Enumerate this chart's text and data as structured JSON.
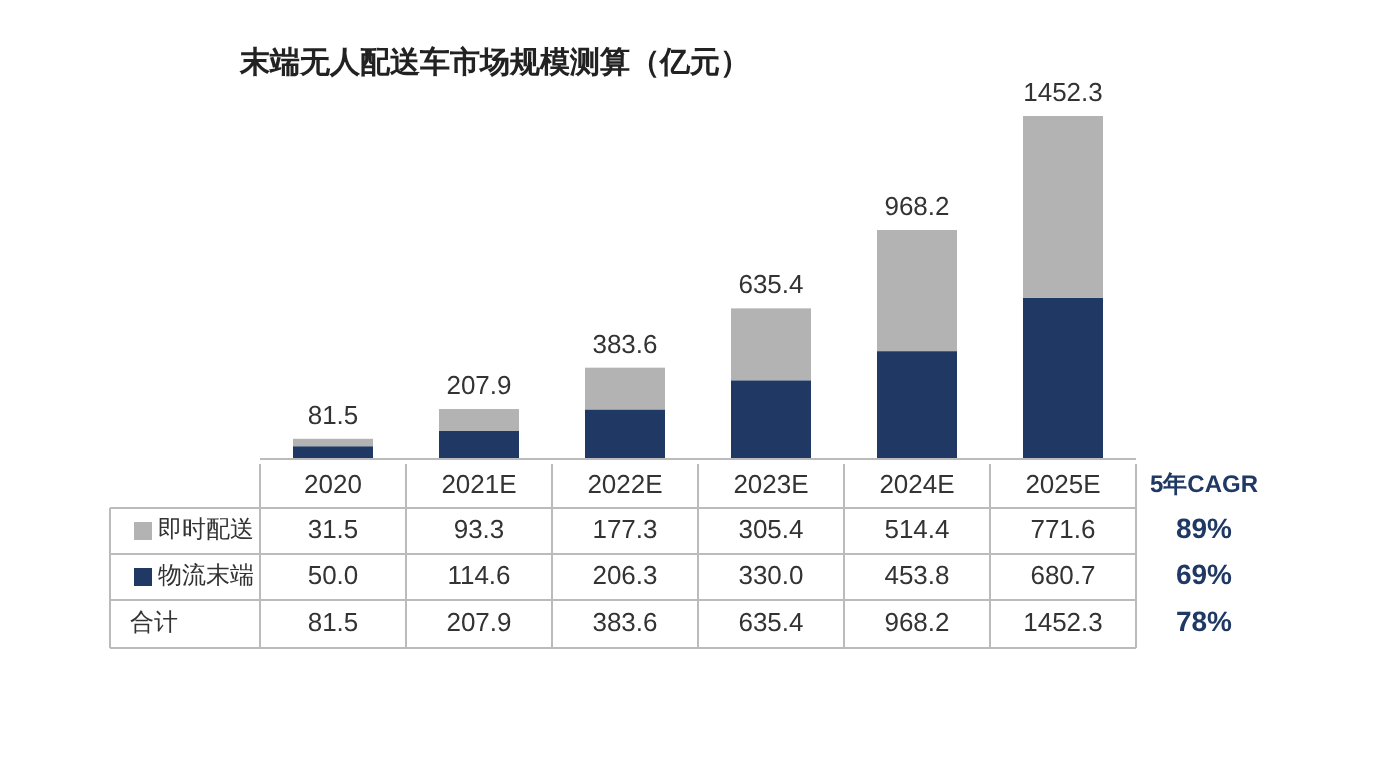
{
  "chart_data": {
    "type": "bar",
    "stacked": true,
    "title": "末端无人配送车市场规模测算（亿元）",
    "categories": [
      "2020",
      "2021E",
      "2022E",
      "2023E",
      "2024E",
      "2025E"
    ],
    "series": [
      {
        "name": "物流末端",
        "color": "#1f3864",
        "values": [
          50.0,
          114.6,
          206.3,
          330.0,
          453.8,
          680.7
        ],
        "value_labels": [
          "50.0",
          "114.6",
          "206.3",
          "330.0",
          "453.8",
          "680.7"
        ]
      },
      {
        "name": "即时配送",
        "color": "#b3b3b3",
        "values": [
          31.5,
          93.3,
          177.3,
          305.4,
          514.4,
          771.6
        ],
        "value_labels": [
          "31.5",
          "93.3",
          "177.3",
          "305.4",
          "514.4",
          "771.6"
        ]
      }
    ],
    "totals": [
      "81.5",
      "207.9",
      "383.6",
      "635.4",
      "968.2",
      "1452.3"
    ],
    "annotations": [
      "合计",
      "5年CAGR",
      "89%",
      "69%",
      "78%"
    ],
    "legend": "left"
  }
}
